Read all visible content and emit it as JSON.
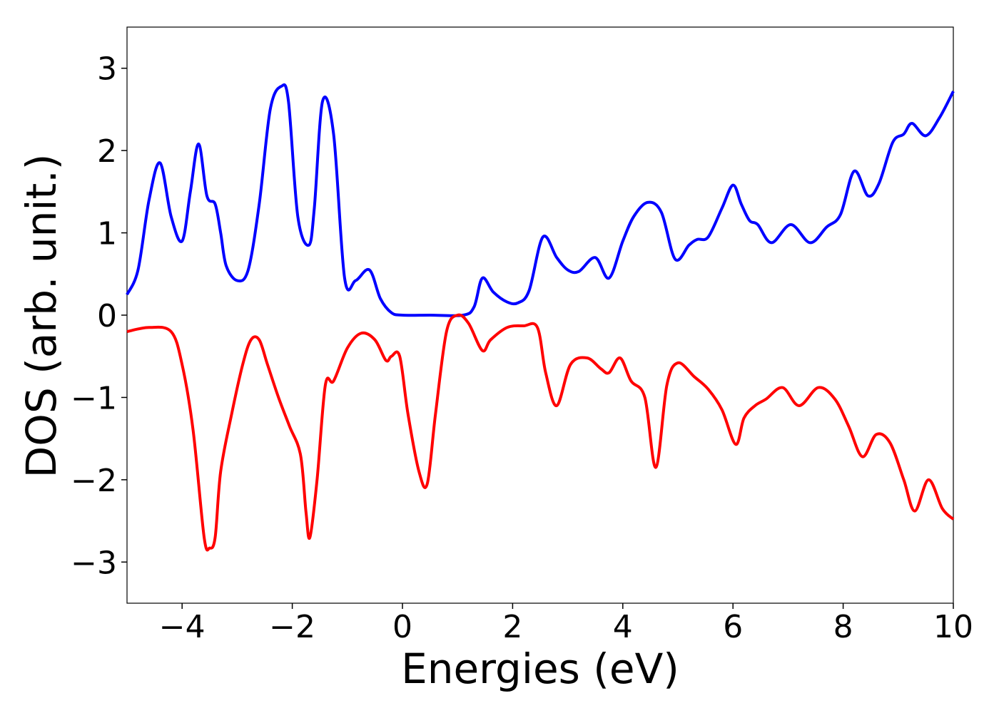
{
  "chart_data": {
    "type": "line",
    "xlabel": "Energies (eV)",
    "ylabel": "DOS (arb. unit.)",
    "xlim": [
      -5,
      10
    ],
    "ylim": [
      -3.5,
      3.5
    ],
    "xticks": [
      -4,
      -2,
      0,
      2,
      4,
      6,
      8,
      10
    ],
    "xtick_labels": [
      "−4",
      "−2",
      "0",
      "2",
      "4",
      "6",
      "8",
      "10"
    ],
    "yticks": [
      -3,
      -2,
      -1,
      0,
      1,
      2,
      3
    ],
    "ytick_labels": [
      "−3",
      "−2",
      "−1",
      "0",
      "1",
      "2",
      "3"
    ],
    "grid": false,
    "series": [
      {
        "color": "#0000ff",
        "x": [
          -5.0,
          -4.8,
          -4.6,
          -4.4,
          -4.2,
          -4.0,
          -3.85,
          -3.7,
          -3.55,
          -3.4,
          -3.3,
          -3.2,
          -3.0,
          -2.8,
          -2.6,
          -2.4,
          -2.2,
          -2.07,
          -1.9,
          -1.7,
          -1.6,
          -1.45,
          -1.25,
          -1.05,
          -0.85,
          -0.6,
          -0.4,
          -0.2,
          0.0,
          0.5,
          1.1,
          1.3,
          1.45,
          1.65,
          1.9,
          2.1,
          2.3,
          2.55,
          2.8,
          3.0,
          3.2,
          3.5,
          3.75,
          4.0,
          4.2,
          4.45,
          4.7,
          4.95,
          5.2,
          5.35,
          5.55,
          5.8,
          6.0,
          6.15,
          6.3,
          6.45,
          6.7,
          7.05,
          7.4,
          7.7,
          7.95,
          8.2,
          8.45,
          8.65,
          8.9,
          9.1,
          9.25,
          9.5,
          9.75,
          10.0
        ],
        "values": [
          0.25,
          0.55,
          1.4,
          1.85,
          1.2,
          0.9,
          1.5,
          2.08,
          1.45,
          1.35,
          1.0,
          0.6,
          0.42,
          0.55,
          1.35,
          2.5,
          2.78,
          2.6,
          1.2,
          0.85,
          1.3,
          2.6,
          2.2,
          0.45,
          0.42,
          0.55,
          0.2,
          0.03,
          0.0,
          0.0,
          0.0,
          0.1,
          0.45,
          0.28,
          0.16,
          0.15,
          0.3,
          0.95,
          0.7,
          0.55,
          0.53,
          0.7,
          0.45,
          0.9,
          1.2,
          1.37,
          1.25,
          0.68,
          0.85,
          0.92,
          0.95,
          1.3,
          1.58,
          1.35,
          1.15,
          1.1,
          0.88,
          1.1,
          0.88,
          1.07,
          1.22,
          1.75,
          1.45,
          1.6,
          2.1,
          2.2,
          2.33,
          2.18,
          2.4,
          2.72
        ]
      },
      {
        "color": "#ff0000",
        "x": [
          -5.0,
          -4.6,
          -4.2,
          -4.0,
          -3.8,
          -3.6,
          -3.5,
          -3.4,
          -3.3,
          -3.1,
          -2.9,
          -2.75,
          -2.6,
          -2.45,
          -2.25,
          -2.05,
          -1.85,
          -1.75,
          -1.68,
          -1.55,
          -1.4,
          -1.25,
          -1.0,
          -0.75,
          -0.5,
          -0.3,
          -0.2,
          -0.05,
          0.1,
          0.3,
          0.45,
          0.6,
          0.8,
          1.0,
          1.2,
          1.45,
          1.6,
          1.9,
          2.2,
          2.45,
          2.6,
          2.8,
          3.05,
          3.35,
          3.6,
          3.75,
          3.95,
          4.15,
          4.4,
          4.6,
          4.8,
          5.0,
          5.3,
          5.55,
          5.8,
          6.05,
          6.2,
          6.4,
          6.6,
          6.9,
          7.2,
          7.55,
          7.85,
          8.1,
          8.35,
          8.6,
          8.85,
          9.1,
          9.3,
          9.55,
          9.8,
          10.0
        ],
        "values": [
          -0.2,
          -0.15,
          -0.2,
          -0.6,
          -1.4,
          -2.7,
          -2.83,
          -2.7,
          -1.9,
          -1.2,
          -0.6,
          -0.3,
          -0.3,
          -0.6,
          -1.0,
          -1.35,
          -1.7,
          -2.4,
          -2.7,
          -2.0,
          -0.85,
          -0.8,
          -0.4,
          -0.22,
          -0.3,
          -0.55,
          -0.5,
          -0.5,
          -1.2,
          -1.9,
          -2.05,
          -1.2,
          -0.2,
          0.0,
          -0.1,
          -0.43,
          -0.3,
          -0.15,
          -0.13,
          -0.15,
          -0.7,
          -1.1,
          -0.6,
          -0.52,
          -0.65,
          -0.7,
          -0.52,
          -0.8,
          -1.0,
          -1.85,
          -0.85,
          -0.58,
          -0.75,
          -0.9,
          -1.15,
          -1.57,
          -1.25,
          -1.1,
          -1.02,
          -0.88,
          -1.1,
          -0.88,
          -1.02,
          -1.35,
          -1.72,
          -1.45,
          -1.55,
          -2.0,
          -2.38,
          -2.0,
          -2.35,
          -2.48
        ]
      }
    ]
  }
}
